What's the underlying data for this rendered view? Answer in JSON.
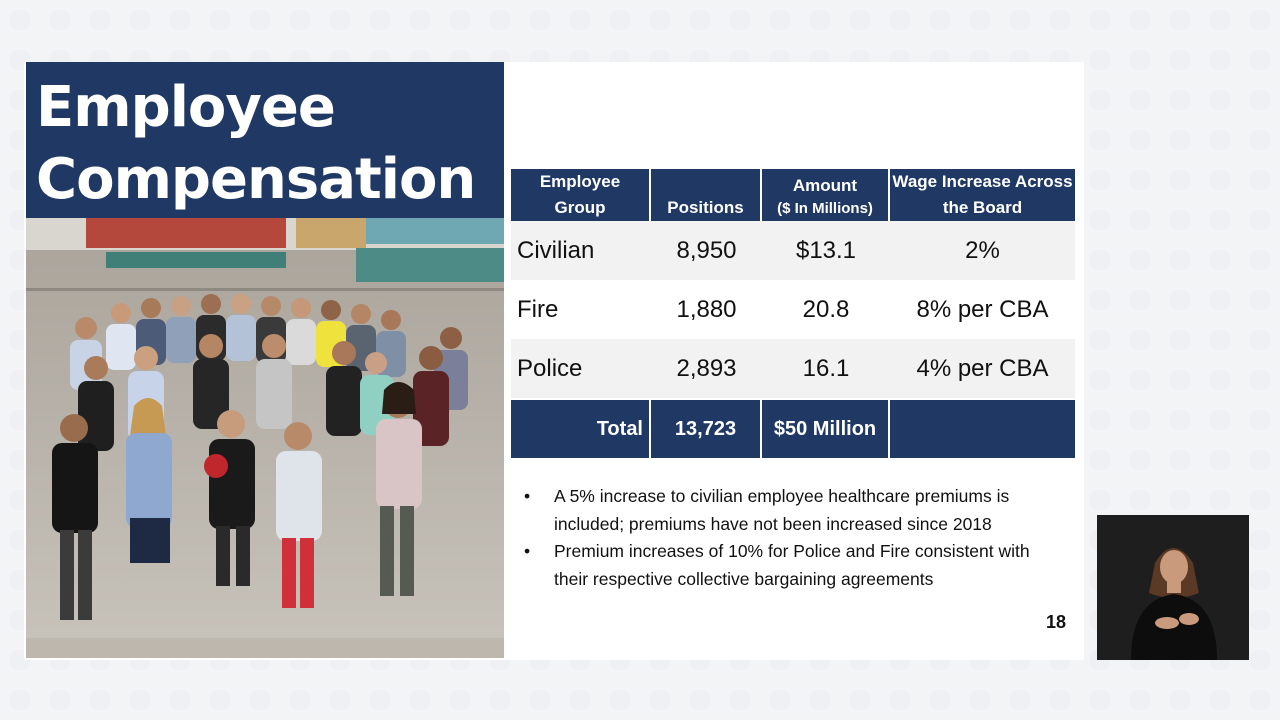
{
  "slide": {
    "title_line1": "Employee",
    "title_line2": "Compensation",
    "page_number": "18"
  },
  "table": {
    "headers": {
      "group": "Employee Group",
      "positions": "Positions",
      "amount": "Amount",
      "amount_sub": "($ In Millions)",
      "wage": "Wage Increase Across the Board"
    },
    "rows": [
      {
        "group": "Civilian",
        "positions": "8,950",
        "amount": "$13.1",
        "wage": "2%"
      },
      {
        "group": "Fire",
        "positions": "1,880",
        "amount": "20.8",
        "wage": "8% per CBA"
      },
      {
        "group": "Police",
        "positions": "2,893",
        "amount": "16.1",
        "wage": "4% per CBA"
      }
    ],
    "total": {
      "label": "Total",
      "positions": "13,723",
      "amount": "$50 Million",
      "wage": ""
    }
  },
  "notes": [
    "A 5% increase to civilian employee healthcare premiums is included; premiums have not been increased since 2018",
    "Premium increases of 10% for Police and Fire consistent with their respective collective bargaining agreements"
  ],
  "colors": {
    "navy": "#1f3864"
  }
}
